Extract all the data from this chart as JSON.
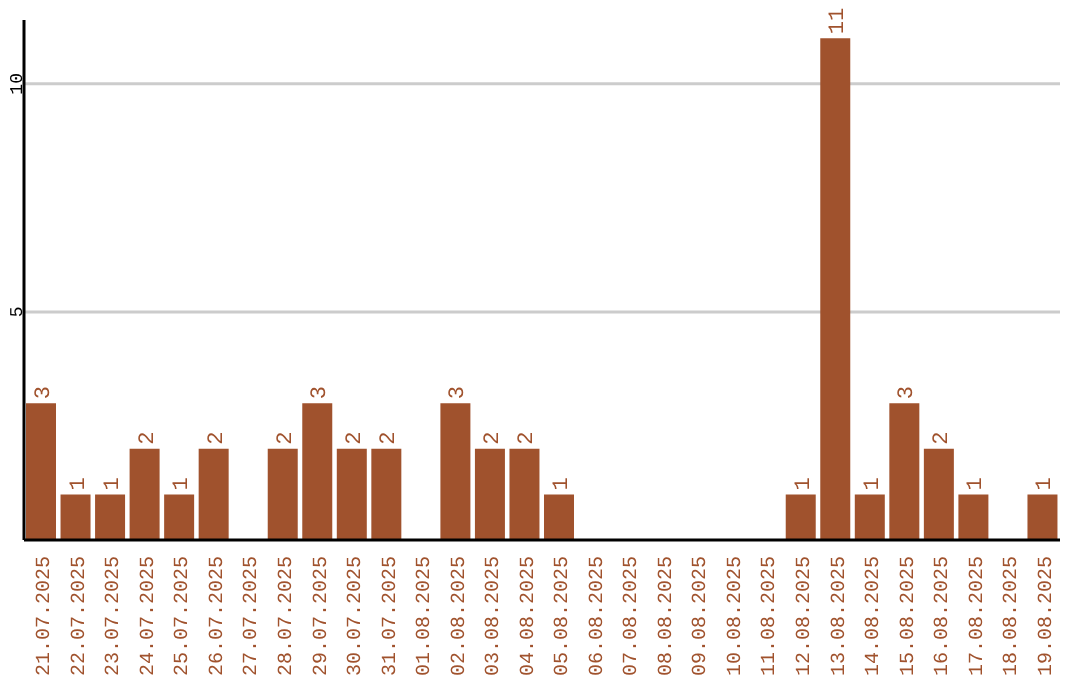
{
  "chart_data": {
    "type": "bar",
    "categories": [
      "21.07.2025",
      "22.07.2025",
      "23.07.2025",
      "24.07.2025",
      "25.07.2025",
      "26.07.2025",
      "27.07.2025",
      "28.07.2025",
      "29.07.2025",
      "30.07.2025",
      "31.07.2025",
      "01.08.2025",
      "02.08.2025",
      "03.08.2025",
      "04.08.2025",
      "05.08.2025",
      "06.08.2025",
      "07.08.2025",
      "08.08.2025",
      "09.08.2025",
      "10.08.2025",
      "11.08.2025",
      "12.08.2025",
      "13.08.2025",
      "14.08.2025",
      "15.08.2025",
      "16.08.2025",
      "17.08.2025",
      "18.08.2025",
      "19.08.2025"
    ],
    "values": [
      3,
      1,
      1,
      2,
      1,
      2,
      null,
      2,
      3,
      2,
      2,
      null,
      3,
      2,
      2,
      1,
      null,
      null,
      null,
      null,
      null,
      null,
      1,
      11,
      1,
      3,
      2,
      1,
      null,
      1
    ],
    "color": "#a0522d",
    "ylim": [
      0,
      11.4
    ],
    "yticks": [
      5,
      10
    ],
    "grid": "y",
    "data_labels": true
  }
}
